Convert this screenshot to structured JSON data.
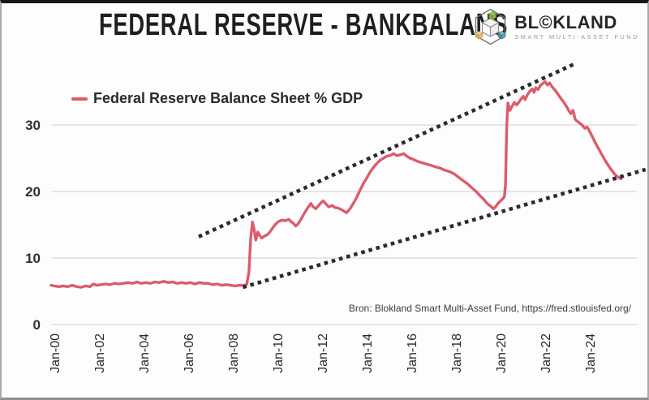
{
  "header": {
    "title": "FEDERAL RESERVE - BANKBALANS"
  },
  "logo": {
    "brand_left": "BL",
    "brand_mark": "©",
    "brand_right": "KLAND",
    "tagline": "SMART MULTI-ASSET FUND"
  },
  "legend": {
    "label": "Federal Reserve Balance Sheet % GDP"
  },
  "source": {
    "text": "Bron: Blokland Smart Multi-Asset Fund, https://fred.stlouisfed.org/"
  },
  "colors": {
    "series": "#dc5c6b",
    "trendline": "#2b2b2b",
    "grid": "#d9d9d9",
    "axis_text": "#2a2a2a",
    "logo_green": "#8ab943",
    "logo_yellow": "#e6c36c",
    "logo_teal": "#5aa3ad"
  },
  "chart_data": {
    "type": "line",
    "title": "FEDERAL RESERVE - BANKBALANS",
    "xlabel": "",
    "ylabel": "",
    "ylim": [
      0,
      41
    ],
    "xlim": [
      1999.7,
      2026.6
    ],
    "grid": "horizontal",
    "legend_position": "top-left",
    "yticks": [
      0,
      10,
      20,
      30
    ],
    "xtick_years": [
      2000,
      2002,
      2004,
      2006,
      2008,
      2010,
      2012,
      2014,
      2016,
      2018,
      2020,
      2022,
      2024
    ],
    "xtick_labels": [
      "Jan-00",
      "Jan-02",
      "Jan-04",
      "Jan-06",
      "Jan-08",
      "Jan-10",
      "Jan-12",
      "Jan-14",
      "Jan-16",
      "Jan-18",
      "Jan-20",
      "Jan-22",
      "Jan-24"
    ],
    "source": "Bron: Blokland Smart Multi-Asset Fund, https://fred.stlouisfed.org/",
    "series": [
      {
        "name": "Federal Reserve Balance Sheet % GDP",
        "color": "#dc5c6b",
        "points": [
          [
            1999.85,
            5.9
          ],
          [
            2000.0,
            5.8
          ],
          [
            2000.2,
            5.7
          ],
          [
            2000.4,
            5.8
          ],
          [
            2000.6,
            5.7
          ],
          [
            2000.8,
            5.9
          ],
          [
            2001.0,
            5.7
          ],
          [
            2001.2,
            5.6
          ],
          [
            2001.4,
            5.8
          ],
          [
            2001.6,
            5.7
          ],
          [
            2001.75,
            6.1
          ],
          [
            2001.9,
            5.9
          ],
          [
            2002.1,
            6.0
          ],
          [
            2002.3,
            6.1
          ],
          [
            2002.5,
            6.0
          ],
          [
            2002.7,
            6.2
          ],
          [
            2002.9,
            6.1
          ],
          [
            2003.1,
            6.2
          ],
          [
            2003.3,
            6.3
          ],
          [
            2003.5,
            6.2
          ],
          [
            2003.7,
            6.4
          ],
          [
            2003.9,
            6.2
          ],
          [
            2004.1,
            6.3
          ],
          [
            2004.3,
            6.2
          ],
          [
            2004.5,
            6.4
          ],
          [
            2004.7,
            6.3
          ],
          [
            2004.9,
            6.5
          ],
          [
            2005.1,
            6.3
          ],
          [
            2005.3,
            6.4
          ],
          [
            2005.5,
            6.2
          ],
          [
            2005.7,
            6.3
          ],
          [
            2005.9,
            6.2
          ],
          [
            2006.1,
            6.3
          ],
          [
            2006.3,
            6.1
          ],
          [
            2006.5,
            6.3
          ],
          [
            2006.7,
            6.2
          ],
          [
            2006.9,
            6.2
          ],
          [
            2007.1,
            6.0
          ],
          [
            2007.3,
            6.1
          ],
          [
            2007.5,
            5.9
          ],
          [
            2007.7,
            6.0
          ],
          [
            2007.9,
            5.9
          ],
          [
            2008.1,
            5.8
          ],
          [
            2008.3,
            5.9
          ],
          [
            2008.5,
            5.9
          ],
          [
            2008.62,
            6.0
          ],
          [
            2008.72,
            7.8
          ],
          [
            2008.8,
            12.8
          ],
          [
            2008.88,
            15.4
          ],
          [
            2008.95,
            14.4
          ],
          [
            2009.03,
            12.7
          ],
          [
            2009.12,
            13.9
          ],
          [
            2009.2,
            13.4
          ],
          [
            2009.3,
            13.0
          ],
          [
            2009.42,
            13.3
          ],
          [
            2009.55,
            13.5
          ],
          [
            2009.68,
            14.0
          ],
          [
            2009.8,
            14.6
          ],
          [
            2009.92,
            15.1
          ],
          [
            2010.05,
            15.5
          ],
          [
            2010.2,
            15.7
          ],
          [
            2010.35,
            15.6
          ],
          [
            2010.5,
            15.8
          ],
          [
            2010.6,
            15.5
          ],
          [
            2010.72,
            15.2
          ],
          [
            2010.82,
            14.8
          ],
          [
            2010.92,
            15.1
          ],
          [
            2011.05,
            15.8
          ],
          [
            2011.2,
            16.7
          ],
          [
            2011.35,
            17.5
          ],
          [
            2011.5,
            18.2
          ],
          [
            2011.6,
            17.7
          ],
          [
            2011.72,
            17.4
          ],
          [
            2011.85,
            17.9
          ],
          [
            2011.95,
            18.3
          ],
          [
            2012.05,
            18.6
          ],
          [
            2012.18,
            18.1
          ],
          [
            2012.3,
            17.7
          ],
          [
            2012.45,
            17.9
          ],
          [
            2012.58,
            17.6
          ],
          [
            2012.72,
            17.5
          ],
          [
            2012.85,
            17.3
          ],
          [
            2013.0,
            17.0
          ],
          [
            2013.1,
            16.8
          ],
          [
            2013.25,
            17.4
          ],
          [
            2013.4,
            18.2
          ],
          [
            2013.55,
            19.1
          ],
          [
            2013.7,
            20.2
          ],
          [
            2013.85,
            21.2
          ],
          [
            2014.0,
            22.0
          ],
          [
            2014.15,
            22.9
          ],
          [
            2014.3,
            23.6
          ],
          [
            2014.45,
            24.2
          ],
          [
            2014.6,
            24.7
          ],
          [
            2014.75,
            25.0
          ],
          [
            2014.9,
            25.3
          ],
          [
            2015.05,
            25.4
          ],
          [
            2015.2,
            25.7
          ],
          [
            2015.35,
            25.4
          ],
          [
            2015.5,
            25.5
          ],
          [
            2015.65,
            25.7
          ],
          [
            2015.8,
            25.3
          ],
          [
            2015.95,
            25.0
          ],
          [
            2016.1,
            24.8
          ],
          [
            2016.3,
            24.5
          ],
          [
            2016.5,
            24.3
          ],
          [
            2016.7,
            24.1
          ],
          [
            2016.9,
            23.9
          ],
          [
            2017.1,
            23.7
          ],
          [
            2017.3,
            23.5
          ],
          [
            2017.5,
            23.2
          ],
          [
            2017.7,
            23.0
          ],
          [
            2017.9,
            22.7
          ],
          [
            2018.1,
            22.2
          ],
          [
            2018.3,
            21.7
          ],
          [
            2018.5,
            21.2
          ],
          [
            2018.7,
            20.6
          ],
          [
            2018.9,
            20.0
          ],
          [
            2019.1,
            19.3
          ],
          [
            2019.25,
            18.8
          ],
          [
            2019.4,
            18.2
          ],
          [
            2019.55,
            17.8
          ],
          [
            2019.68,
            17.4
          ],
          [
            2019.78,
            17.7
          ],
          [
            2019.88,
            18.2
          ],
          [
            2020.0,
            18.6
          ],
          [
            2020.1,
            18.9
          ],
          [
            2020.17,
            19.2
          ],
          [
            2020.22,
            21.0
          ],
          [
            2020.28,
            30.0
          ],
          [
            2020.33,
            33.3
          ],
          [
            2020.42,
            32.2
          ],
          [
            2020.52,
            32.8
          ],
          [
            2020.62,
            33.4
          ],
          [
            2020.72,
            33.0
          ],
          [
            2020.82,
            33.4
          ],
          [
            2020.92,
            33.9
          ],
          [
            2021.02,
            34.3
          ],
          [
            2021.1,
            33.8
          ],
          [
            2021.2,
            34.5
          ],
          [
            2021.32,
            35.1
          ],
          [
            2021.42,
            35.4
          ],
          [
            2021.5,
            34.9
          ],
          [
            2021.58,
            35.6
          ],
          [
            2021.68,
            35.3
          ],
          [
            2021.78,
            35.9
          ],
          [
            2021.88,
            36.2
          ],
          [
            2022.0,
            36.5
          ],
          [
            2022.1,
            36.0
          ],
          [
            2022.2,
            36.3
          ],
          [
            2022.32,
            35.7
          ],
          [
            2022.45,
            35.2
          ],
          [
            2022.58,
            34.6
          ],
          [
            2022.7,
            34.0
          ],
          [
            2022.82,
            33.5
          ],
          [
            2022.95,
            32.8
          ],
          [
            2023.05,
            32.2
          ],
          [
            2023.15,
            31.7
          ],
          [
            2023.25,
            32.2
          ],
          [
            2023.35,
            30.8
          ],
          [
            2023.5,
            30.4
          ],
          [
            2023.65,
            30.0
          ],
          [
            2023.78,
            29.5
          ],
          [
            2023.88,
            29.7
          ],
          [
            2024.0,
            29.0
          ],
          [
            2024.12,
            28.2
          ],
          [
            2024.25,
            27.3
          ],
          [
            2024.4,
            26.4
          ],
          [
            2024.55,
            25.5
          ],
          [
            2024.7,
            24.6
          ],
          [
            2024.85,
            23.8
          ],
          [
            2025.0,
            23.1
          ],
          [
            2025.12,
            22.6
          ],
          [
            2025.25,
            22.2
          ],
          [
            2025.4,
            21.9
          ]
        ]
      }
    ],
    "trendlines": [
      {
        "name": "upper-resistance",
        "style": "dotted",
        "color": "#2b2b2b",
        "from": [
          2006.47,
          13.2
        ],
        "to": [
          2023.27,
          39.1
        ]
      },
      {
        "name": "lower-support",
        "style": "dotted",
        "color": "#2b2b2b",
        "from": [
          2008.45,
          5.6
        ],
        "to": [
          2026.5,
          23.3
        ]
      }
    ]
  }
}
